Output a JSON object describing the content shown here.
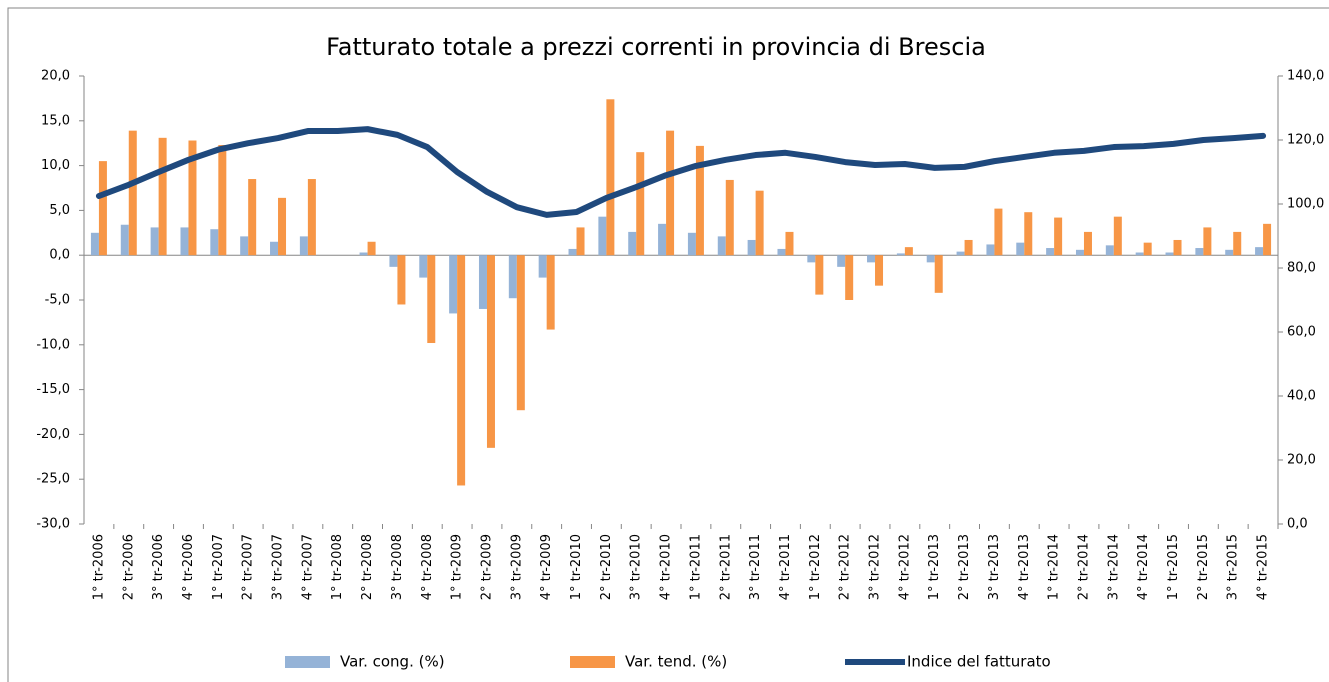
{
  "chart_data": {
    "type": "bar",
    "title": "Fatturato totale a prezzi correnti in provincia di Brescia",
    "categories": [
      "1° tr-2006",
      "2° tr-2006",
      "3° tr-2006",
      "4° tr-2006",
      "1° tr-2007",
      "2° tr-2007",
      "3° tr-2007",
      "4° tr-2007",
      "1° tr-2008",
      "2° tr-2008",
      "3° tr-2008",
      "4° tr-2008",
      "1° tr-2009",
      "2° tr-2009",
      "3° tr-2009",
      "4° tr-2009",
      "1° tr-2010",
      "2° tr-2010",
      "3° tr-2010",
      "4° tr-2010",
      "1° tr-2011",
      "2° tr-2011",
      "3° tr-2011",
      "4° tr-2011",
      "1° tr-2012",
      "2° tr-2012",
      "3° tr-2012",
      "4° tr-2012",
      "1° tr-2013",
      "2° tr-2013",
      "3° tr-2013",
      "4° tr-2013",
      "1° tr-2014",
      "2° tr-2014",
      "3° tr-2014",
      "4° tr-2014",
      "1° tr-2015",
      "2° tr-2015",
      "3° tr-2015",
      "4° tr-2015"
    ],
    "series": [
      {
        "name": "Var. cong. (%)",
        "color": "#95b3d7",
        "values": [
          2.5,
          3.4,
          3.1,
          3.1,
          2.9,
          2.1,
          1.5,
          2.1,
          0,
          0.3,
          -1.3,
          -2.5,
          -6.5,
          -6.0,
          -4.8,
          -2.5,
          0.7,
          4.3,
          2.6,
          3.5,
          2.5,
          2.1,
          1.7,
          0.7,
          -0.8,
          -1.3,
          -0.8,
          0.2,
          -0.8,
          0.4,
          1.2,
          1.4,
          0.8,
          0.6,
          1.1,
          0.3,
          0.3,
          0.8,
          0.6,
          0.9
        ]
      },
      {
        "name": "Var. tend. (%)",
        "color": "#f79646",
        "values": [
          10.5,
          13.9,
          13.1,
          12.8,
          12.3,
          8.5,
          6.4,
          8.5,
          0,
          1.5,
          -5.5,
          -9.8,
          -25.7,
          -21.5,
          -17.3,
          -8.3,
          3.1,
          17.4,
          11.5,
          13.9,
          12.2,
          8.4,
          7.2,
          2.6,
          -4.4,
          -5.0,
          -3.4,
          0.9,
          -4.2,
          1.7,
          5.2,
          4.8,
          4.2,
          2.6,
          4.3,
          1.4,
          1.7,
          3.1,
          2.6,
          3.5
        ]
      },
      {
        "name": "Indice del fatturato",
        "color": "#1f497d",
        "type": "line",
        "axis": "y2",
        "values": [
          102.5,
          106,
          110,
          113.8,
          117,
          119,
          120.6,
          122.8,
          122.8,
          123.4,
          121.6,
          117.8,
          110,
          103.8,
          99,
          96.6,
          97.5,
          101.9,
          105.3,
          109,
          111.9,
          113.8,
          115.3,
          116,
          114.7,
          113.1,
          112.2,
          112.5,
          111.3,
          111.6,
          113.4,
          114.7,
          116,
          116.6,
          117.8,
          118.1,
          118.8,
          120,
          120.6,
          121.3
        ]
      }
    ],
    "ylim": [
      -30,
      20
    ],
    "yticks": [
      {
        "value": -30,
        "label": "-30,0"
      },
      {
        "value": -25,
        "label": "-25,0"
      },
      {
        "value": -20,
        "label": "-20,0"
      },
      {
        "value": -15,
        "label": "-15,0"
      },
      {
        "value": -10,
        "label": "-10,0"
      },
      {
        "value": -5,
        "label": "-5,0"
      },
      {
        "value": 0,
        "label": "0,0"
      },
      {
        "value": 5,
        "label": "5,0"
      },
      {
        "value": 10,
        "label": "10,0"
      },
      {
        "value": 15,
        "label": "15,0"
      },
      {
        "value": 20,
        "label": "20,0"
      }
    ],
    "y2lim": [
      0,
      140
    ],
    "y2ticks": [
      {
        "value": 0,
        "label": "0,0"
      },
      {
        "value": 20,
        "label": "20,0"
      },
      {
        "value": 40,
        "label": "40,0"
      },
      {
        "value": 60,
        "label": "60,0"
      },
      {
        "value": 80,
        "label": "80,0"
      },
      {
        "value": 100,
        "label": "100,0"
      },
      {
        "value": 120,
        "label": "120,0"
      },
      {
        "value": 140,
        "label": "140,0"
      }
    ],
    "legend": "bottom"
  }
}
